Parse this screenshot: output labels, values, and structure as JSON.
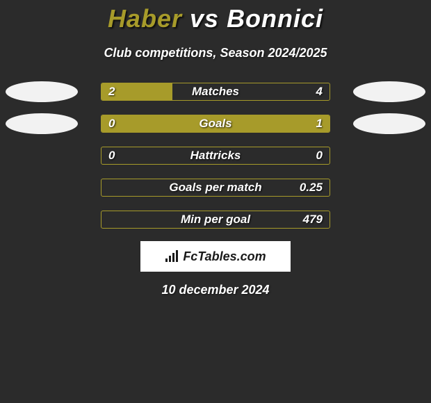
{
  "title": {
    "player1": "Haber",
    "vs": "vs",
    "player2": "Bonnici",
    "player1_color": "#a79b2a",
    "vs_color": "#ffffff",
    "player2_color": "#ffffff",
    "fontsize": 36
  },
  "subtitle": "Club competitions, Season 2024/2025",
  "stats": {
    "type": "comparison-bars",
    "background_color": "#2b2b2b",
    "bar_border_color": "#a79b2a",
    "bar_fill_color": "#a79b2a",
    "text_color": "#ffffff",
    "label_fontsize": 17,
    "badge_color": "#f2f2f2",
    "rows": [
      {
        "label": "Matches",
        "left_val": "2",
        "right_val": "4",
        "left_pct": 31,
        "right_pct": 0,
        "show_left_badge": true,
        "show_right_badge": true,
        "fill_side": "left"
      },
      {
        "label": "Goals",
        "left_val": "0",
        "right_val": "1",
        "left_pct": 0,
        "right_pct": 100,
        "show_left_badge": true,
        "show_right_badge": true,
        "fill_side": "right"
      },
      {
        "label": "Hattricks",
        "left_val": "0",
        "right_val": "0",
        "left_pct": 0,
        "right_pct": 0,
        "show_left_badge": false,
        "show_right_badge": false,
        "fill_side": "none"
      },
      {
        "label": "Goals per match",
        "left_val": "",
        "right_val": "0.25",
        "left_pct": 0,
        "right_pct": 0,
        "show_left_badge": false,
        "show_right_badge": false,
        "fill_side": "none"
      },
      {
        "label": "Min per goal",
        "left_val": "",
        "right_val": "479",
        "left_pct": 0,
        "right_pct": 0,
        "show_left_badge": false,
        "show_right_badge": false,
        "fill_side": "none"
      }
    ]
  },
  "brand": "FcTables.com",
  "date": "10 december 2024"
}
